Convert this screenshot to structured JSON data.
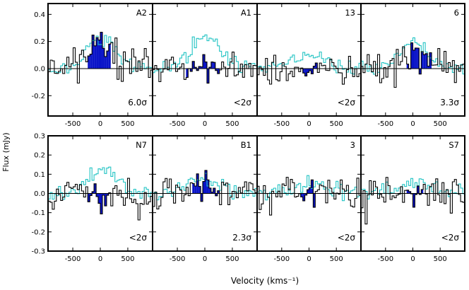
{
  "chart_data": {
    "type": "step-histogram-grid",
    "xlabel": "Velocity (kms⁻¹)",
    "ylabel": "Flux (mJy)",
    "xlim": [
      -950,
      950
    ],
    "x_ticks": [
      -500,
      0,
      500
    ],
    "x_tick_labels": [
      "-500",
      "0",
      "500"
    ],
    "rows": [
      {
        "ylim": [
          -0.35,
          0.48
        ],
        "y_ticks": [
          -0.2,
          0.0,
          0.2,
          0.4
        ],
        "y_tick_labels": [
          "-0.2",
          "0.0",
          "0.2",
          "0.4"
        ]
      },
      {
        "ylim": [
          -0.3,
          0.3
        ],
        "y_ticks": [
          -0.3,
          -0.2,
          -0.1,
          0.0,
          0.1,
          0.2,
          0.3
        ],
        "y_tick_labels": [
          "-0.3",
          "-0.2",
          "-0.1",
          "0.0",
          "0.1",
          "0.2",
          "0.3"
        ]
      }
    ],
    "colors": {
      "observed": "#000000",
      "template": "#22c4c4",
      "highlight": "#0a14c8"
    },
    "panels": [
      {
        "name": "A2",
        "row": 0,
        "col": 0,
        "significance": "6.0σ",
        "line_range": [
          -250,
          200
        ],
        "seed": 11,
        "template_amp": 0.22,
        "template_sigma": 260,
        "noise_obs": 0.11,
        "noise_tpl": 0.045,
        "signal_amp": 0.15
      },
      {
        "name": "A1",
        "row": 0,
        "col": 1,
        "significance": "<2σ",
        "line_range": [
          -350,
          280
        ],
        "seed": 23,
        "template_amp": 0.24,
        "template_sigma": 280,
        "noise_obs": 0.1,
        "noise_tpl": 0.05,
        "signal_amp": 0.02
      },
      {
        "name": "13",
        "row": 0,
        "col": 2,
        "significance": "<2σ",
        "line_range": [
          -120,
          160
        ],
        "seed": 37,
        "template_amp": 0.09,
        "template_sigma": 330,
        "noise_obs": 0.1,
        "noise_tpl": 0.04,
        "signal_amp": -0.02
      },
      {
        "name": "6",
        "row": 0,
        "col": 3,
        "significance": "3.3σ",
        "line_range": [
          -150,
          350
        ],
        "seed": 41,
        "template_amp": 0.2,
        "template_sigma": 260,
        "noise_obs": 0.11,
        "noise_tpl": 0.045,
        "signal_amp": 0.1
      },
      {
        "name": "N7",
        "row": 1,
        "col": 0,
        "significance": "<2σ",
        "line_range": [
          -250,
          200
        ],
        "seed": 53,
        "template_amp": 0.12,
        "template_sigma": 250,
        "noise_obs": 0.075,
        "noise_tpl": 0.035,
        "signal_amp": -0.01
      },
      {
        "name": "B1",
        "row": 1,
        "col": 1,
        "significance": "2.3σ",
        "line_range": [
          -230,
          250
        ],
        "seed": 67,
        "template_amp": 0.08,
        "template_sigma": 300,
        "noise_obs": 0.075,
        "noise_tpl": 0.035,
        "signal_amp": 0.05
      },
      {
        "name": "3",
        "row": 1,
        "col": 2,
        "significance": "<2σ",
        "line_range": [
          -200,
          120
        ],
        "seed": 71,
        "template_amp": 0.05,
        "template_sigma": 320,
        "noise_obs": 0.075,
        "noise_tpl": 0.035,
        "signal_amp": 0.0
      },
      {
        "name": "S7",
        "row": 1,
        "col": 3,
        "significance": "<2σ",
        "line_range": [
          -120,
          200
        ],
        "seed": 83,
        "template_amp": 0.06,
        "template_sigma": 300,
        "noise_obs": 0.075,
        "noise_tpl": 0.035,
        "signal_amp": 0.02
      }
    ]
  }
}
